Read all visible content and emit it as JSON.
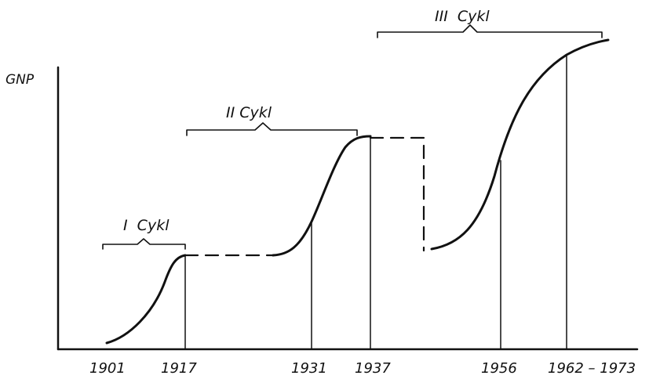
{
  "chart_data": {
    "type": "line",
    "title": "",
    "xlabel": "",
    "ylabel": "GNP",
    "x_ticks": [
      "1901",
      "1917",
      "1931",
      "1937",
      "1956",
      "1962 – 1973"
    ],
    "cycles": [
      {
        "label": "I  Cykl"
      },
      {
        "label": "II Cykl"
      },
      {
        "label": "III  Cykl"
      }
    ]
  }
}
